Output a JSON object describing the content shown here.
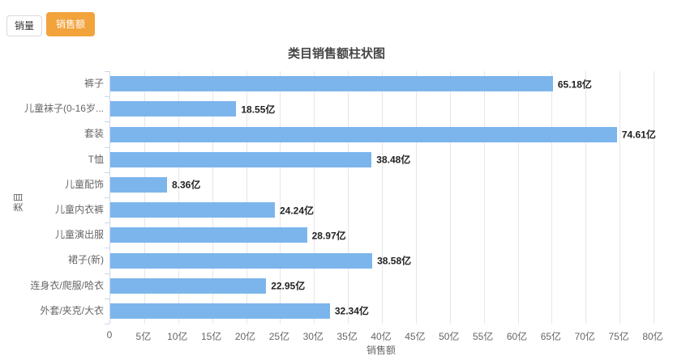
{
  "toolbar": {
    "buttons": [
      {
        "label": "销量",
        "active": false
      },
      {
        "label": "销售额",
        "active": true
      }
    ],
    "active_color": "#F2A33C"
  },
  "chart_data": {
    "type": "bar",
    "orientation": "horizontal",
    "title": "类目销售额柱状图",
    "categories": [
      "裤子",
      "儿童袜子(0-16岁...",
      "套装",
      "T恤",
      "儿童配饰",
      "儿童内衣裤",
      "儿童演出服",
      "裙子(新)",
      "连身衣/爬服/哈衣",
      "外套/夹克/大衣"
    ],
    "values": [
      65.18,
      18.55,
      74.61,
      38.48,
      8.36,
      24.24,
      28.97,
      38.58,
      22.95,
      32.34
    ],
    "value_labels": [
      "65.18亿",
      "18.55亿",
      "74.61亿",
      "38.48亿",
      "8.36亿",
      "24.24亿",
      "28.97亿",
      "38.58亿",
      "22.95亿",
      "32.34亿"
    ],
    "unit": "亿",
    "xlabel": "销售额",
    "ylabel": "类目",
    "xlim": [
      0,
      80
    ],
    "x_tick_step": 5,
    "x_ticks": [
      "0",
      "5亿",
      "10亿",
      "15亿",
      "20亿",
      "25亿",
      "30亿",
      "35亿",
      "40亿",
      "45亿",
      "50亿",
      "55亿",
      "60亿",
      "65亿",
      "70亿",
      "75亿",
      "80亿"
    ],
    "bar_color": "#7CB5EC",
    "grid": true,
    "legend_position": "none"
  }
}
